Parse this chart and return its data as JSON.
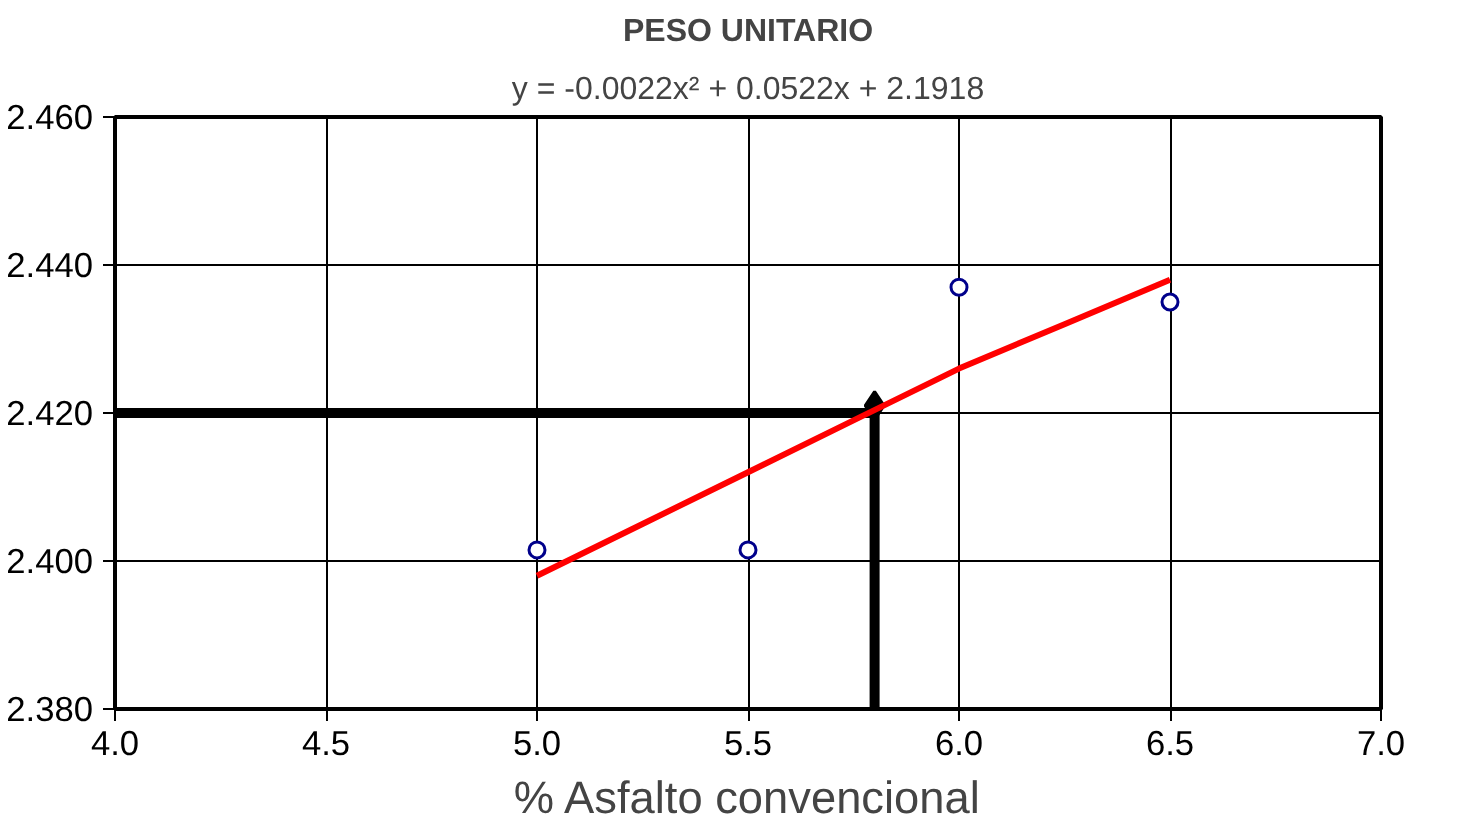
{
  "chart_data": {
    "type": "scatter",
    "title": "PESO UNITARIO",
    "xlabel": "% Asfalto convencional",
    "annotations": [
      "y = -0.0022x² + 0.0522x + 2.1918"
    ],
    "xlim": [
      4.0,
      7.0
    ],
    "ylim": [
      2.38,
      2.46
    ],
    "xticks": [
      {
        "value": 4,
        "label": "4.0"
      },
      {
        "value": 4.5,
        "label": "4.5"
      },
      {
        "value": 5,
        "label": "5.0"
      },
      {
        "value": 5.5,
        "label": "5.5"
      },
      {
        "value": 6,
        "label": "6.0"
      },
      {
        "value": 6.5,
        "label": "6.5"
      },
      {
        "value": 7,
        "label": "7.0"
      }
    ],
    "yticks": [
      {
        "value": 2.38,
        "label": "2.380"
      },
      {
        "value": 2.4,
        "label": "2.400"
      },
      {
        "value": 2.42,
        "label": "2.420"
      },
      {
        "value": 2.44,
        "label": "2.440"
      },
      {
        "value": 2.46,
        "label": "2.460"
      }
    ],
    "grid": true,
    "series": [
      {
        "type": "line",
        "color": "#000000",
        "x": [
          4.0,
          5.8,
          5.8
        ],
        "values": [
          2.42,
          2.42,
          2.38
        ],
        "marker": "none"
      },
      {
        "type": "scatter",
        "color": "#000000",
        "x": [
          5.8
        ],
        "values": [
          2.421
        ],
        "marker": "diamond"
      },
      {
        "type": "line",
        "color": "#ff0000",
        "x": [
          5.0,
          5.25,
          5.5,
          5.75,
          6.0,
          6.25,
          6.5
        ],
        "values": [
          2.398,
          2.405,
          2.412,
          2.419,
          2.426,
          2.432,
          2.438
        ],
        "marker": "none"
      },
      {
        "type": "scatter",
        "color": "#00008b",
        "x": [
          5.0,
          5.5,
          6.0,
          6.5
        ],
        "values": [
          2.4015,
          2.4015,
          2.437,
          2.435
        ],
        "marker": "circle"
      }
    ]
  }
}
